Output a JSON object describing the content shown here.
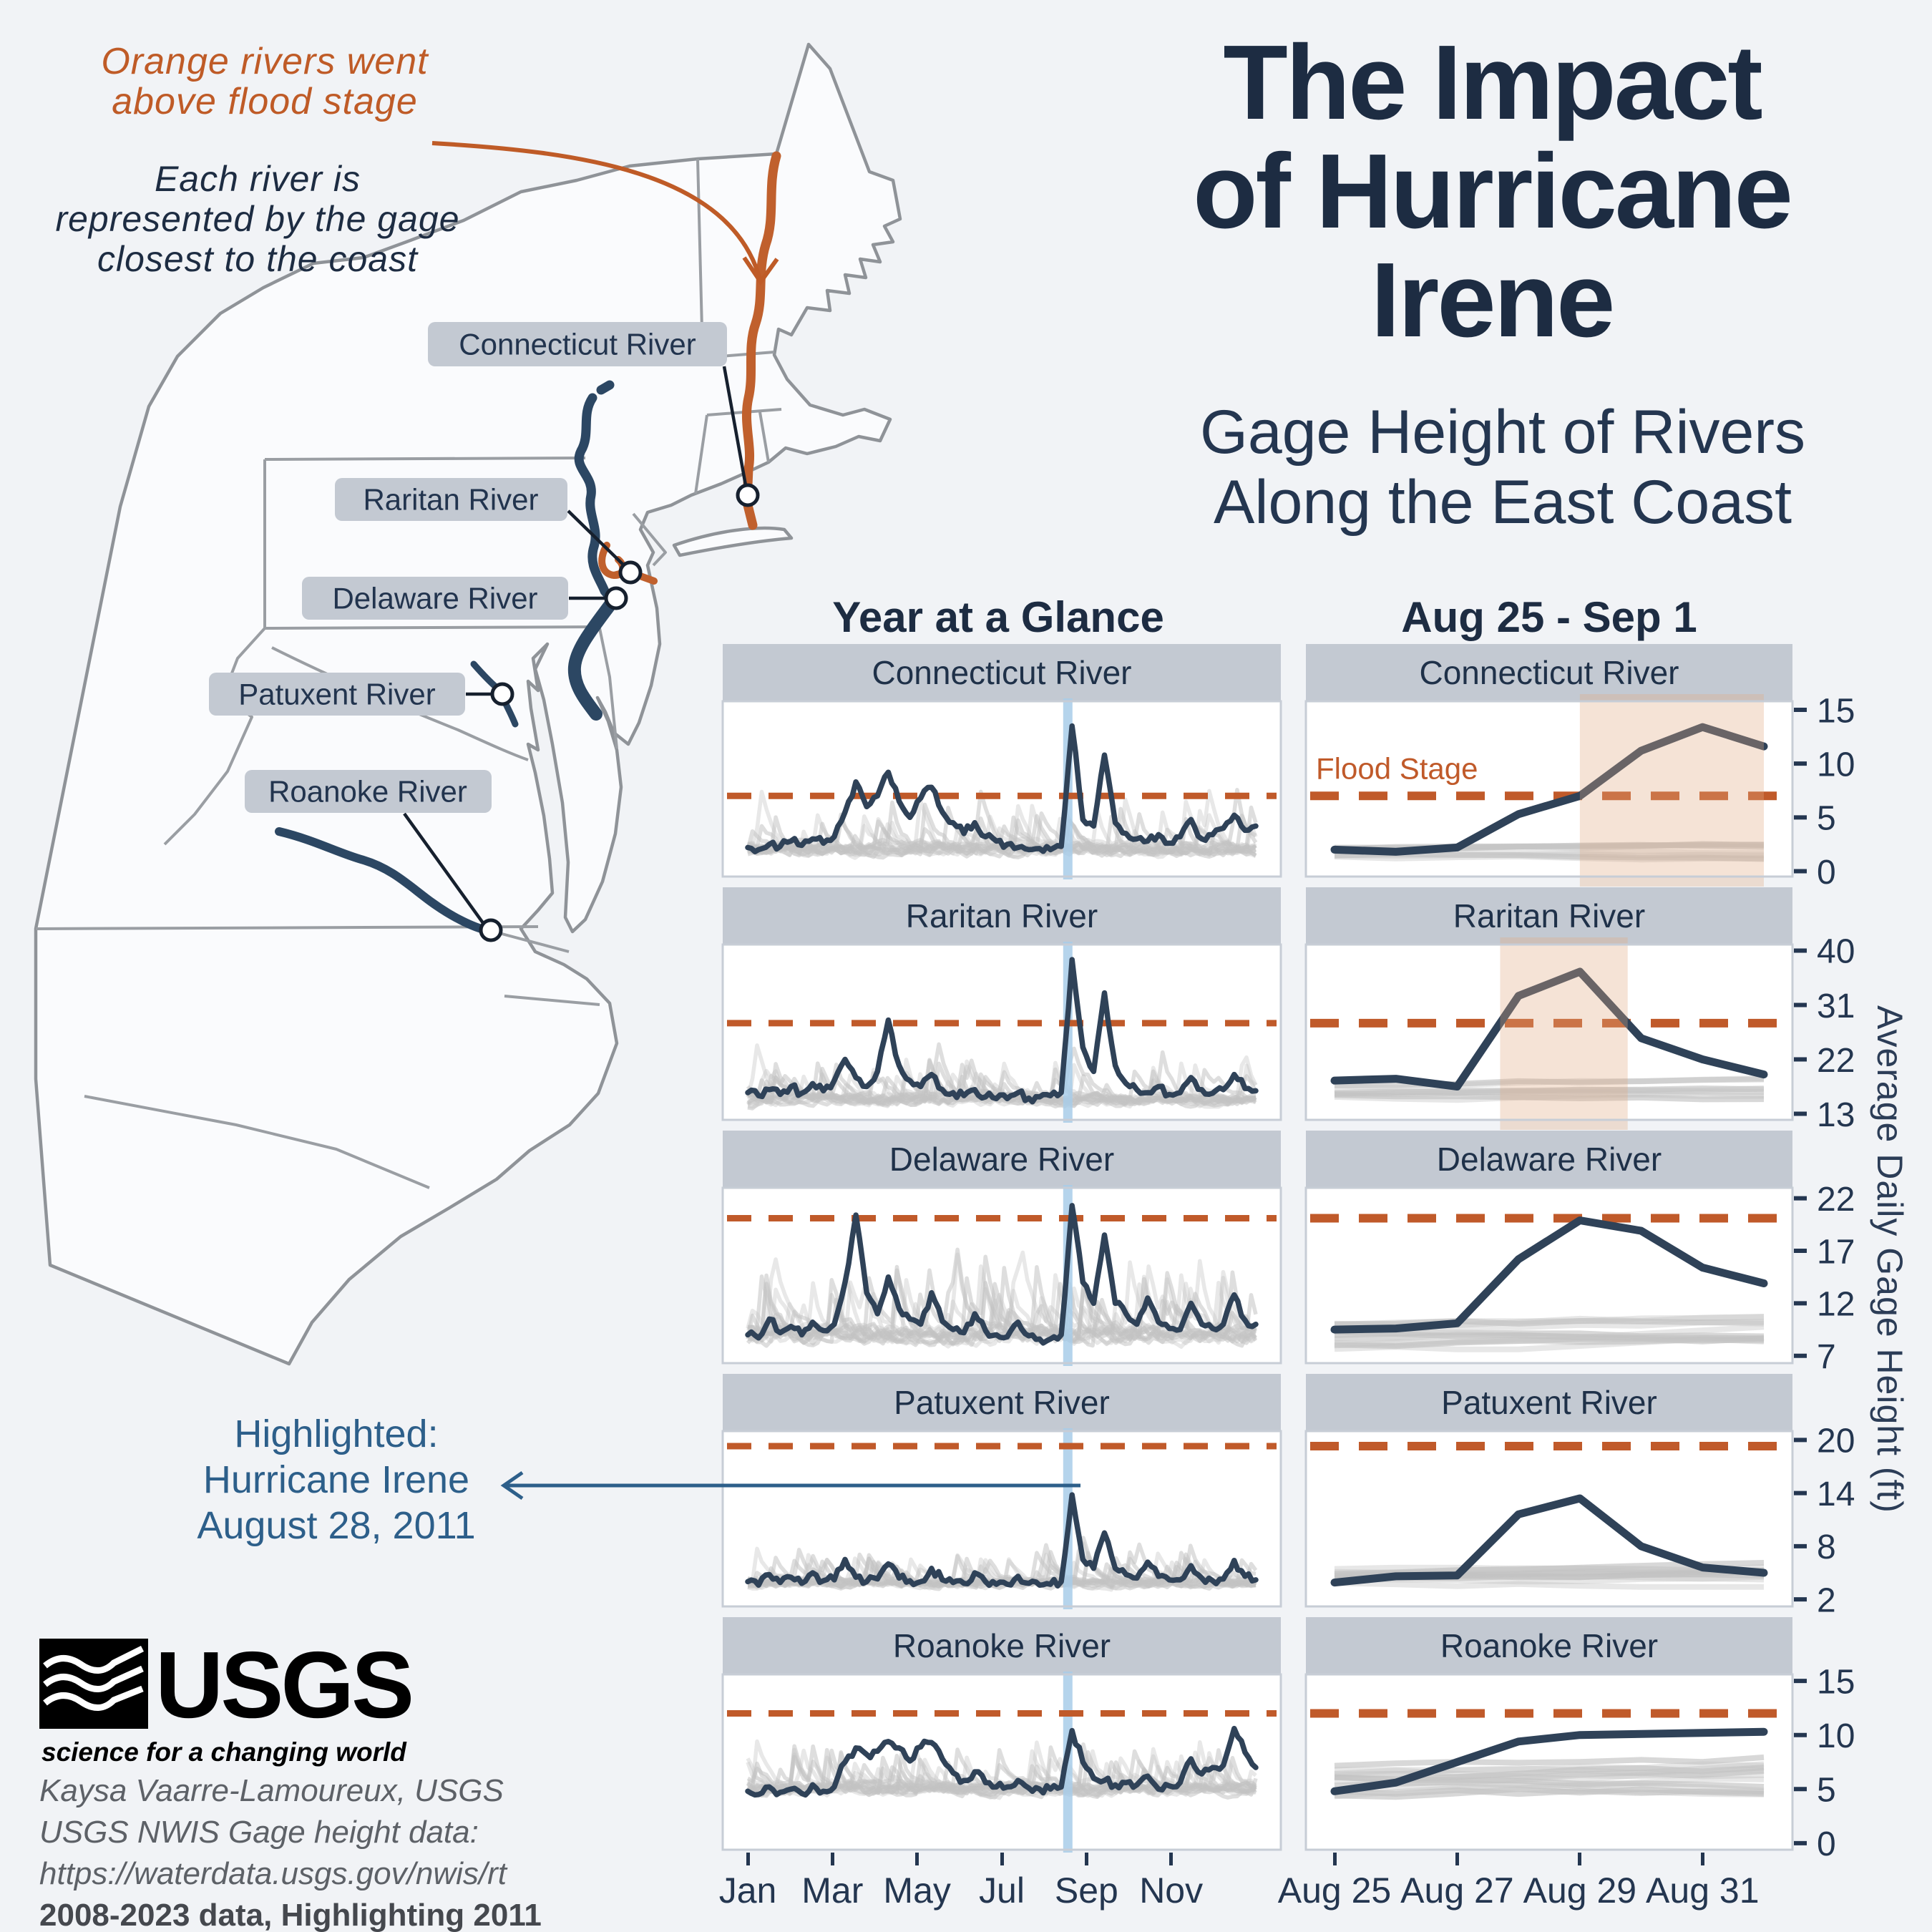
{
  "title": {
    "line1": "The Impact",
    "line2": "of Hurricane",
    "line3": "Irene"
  },
  "subtitle": {
    "line1": "Gage Height of Rivers",
    "line2": "Along the East Coast"
  },
  "column_headers": {
    "year": "Year at a Glance",
    "week": "Aug 25 - Sep 1"
  },
  "map": {
    "note_flood": [
      "Orange rivers went",
      "above flood stage"
    ],
    "note_gage": [
      "Each river is",
      "represented by the gage",
      "closest to the coast"
    ],
    "labels": [
      "Connecticut River",
      "Raritan River",
      "Delaware River",
      "Patuxent River",
      "Roanoke River"
    ]
  },
  "flood_stage_label": "Flood Stage",
  "highlight_note": {
    "line1": "Highlighted:",
    "line2": "Hurricane Irene",
    "line3": "August 28, 2011"
  },
  "axis": {
    "year_ticks": [
      "Jan",
      "Mar",
      "May",
      "Jul",
      "Sep",
      "Nov"
    ],
    "week_ticks": [
      "Aug 25",
      "Aug 27",
      "Aug 29",
      "Aug 31"
    ],
    "y_label": "Average Daily Gage Height (ft)"
  },
  "logo": {
    "org": "USGS",
    "tagline": "science for a changing world"
  },
  "credits": {
    "line1": "Kaysa Vaarre-Lamoureux, USGS",
    "line2": "USGS NWIS Gage height data:",
    "line3": "https://waterdata.usgs.gov/nwis/rt",
    "line4": "2008-2023 data, Highlighting 2011"
  },
  "colors": {
    "background": "#f1f3f6",
    "ink": "#1d2c42",
    "header_bar": "#c3c9d2",
    "panel_border": "#c7cdd6",
    "line_2011": "#2f4258",
    "line_history": "#c3c3c3",
    "flood": "#c05a2a",
    "flood_shade": "#e0a983",
    "irene_marker": "#a9cde9",
    "map_outline": "#8f9398",
    "land": "#fafbfd",
    "river_flooded": "#c0602d",
    "river": "#2c4763",
    "note_blue": "#2d5f8a",
    "credit_gray": "#5d6167"
  },
  "chart_data": [
    {
      "river": "Connecticut River",
      "type": "line",
      "flood_stage_ft": 7,
      "ylim": [
        -0.5,
        15.8
      ],
      "yticks": [
        15,
        10,
        5,
        0
      ],
      "irene_frac": 0.63,
      "year_2011_values": [
        2.2,
        2.0,
        2.5,
        2.3,
        2.8,
        2.4,
        3.0,
        2.6,
        3.2,
        5.5,
        8.3,
        6.0,
        7.0,
        9.2,
        6.5,
        5.0,
        6.8,
        7.8,
        5.5,
        4.5,
        3.5,
        4.5,
        3.2,
        2.8,
        2.5,
        2.2,
        2.0,
        2.1,
        2.0,
        2.3,
        13.5,
        4.8,
        4.2,
        10.8,
        4.5,
        3.5,
        3.0,
        2.8,
        3.4,
        2.6,
        3.2,
        4.8,
        3.0,
        3.4,
        4.0,
        5.2,
        3.8,
        4.2
      ],
      "week_days": [
        "Aug 25",
        "Aug 26",
        "Aug 27",
        "Aug 28",
        "Aug 29",
        "Aug 30",
        "Aug 31",
        "Sep 1"
      ],
      "week_2011_values": [
        2.0,
        1.8,
        2.2,
        5.3,
        7.0,
        11.2,
        13.4,
        11.6
      ],
      "week_flood_shade_days": [
        4,
        7
      ],
      "week_gray": {
        "count": 8,
        "lo": 1.0,
        "hi": 3.8
      },
      "year_gray": {
        "count": 15,
        "lo": 0.8,
        "hi": 9.0
      }
    },
    {
      "river": "Raritan River",
      "type": "line",
      "flood_stage_ft": 28,
      "ylim": [
        12,
        41
      ],
      "yticks": [
        40,
        31,
        22,
        13
      ],
      "irene_frac": 0.63,
      "year_2011_values": [
        16.5,
        16.0,
        17.0,
        16.2,
        17.5,
        16.4,
        18.0,
        16.8,
        18.5,
        22.0,
        19.0,
        17.5,
        20.0,
        28.5,
        21.0,
        18.5,
        17.5,
        19.5,
        17.0,
        16.5,
        16.0,
        17.0,
        15.8,
        15.5,
        15.5,
        16.5,
        15.6,
        15.8,
        16.0,
        16.5,
        38.5,
        24.0,
        20.0,
        33.0,
        21.0,
        18.0,
        17.0,
        16.5,
        17.5,
        16.2,
        16.5,
        19.0,
        17.0,
        16.4,
        17.0,
        19.5,
        17.2,
        16.8
      ],
      "week_days": [
        "Aug 25",
        "Aug 26",
        "Aug 27",
        "Aug 28",
        "Aug 29",
        "Aug 30",
        "Aug 31",
        "Sep 1"
      ],
      "week_2011_values": [
        18.5,
        18.8,
        17.5,
        32.5,
        36.5,
        25.5,
        22.0,
        19.5
      ],
      "week_flood_shade_days": [
        2.7,
        4.78
      ],
      "week_gray": {
        "count": 8,
        "lo": 14.5,
        "hi": 20.5
      },
      "year_gray": {
        "count": 15,
        "lo": 13.5,
        "hi": 26.0
      }
    },
    {
      "river": "Delaware River",
      "type": "line",
      "flood_stage_ft": 20.1,
      "ylim": [
        6.3,
        23
      ],
      "yticks": [
        22,
        17,
        12,
        7
      ],
      "irene_frac": 0.63,
      "year_2011_values": [
        9.0,
        8.7,
        10.5,
        9.2,
        9.8,
        9.0,
        10.2,
        9.4,
        10.0,
        14.0,
        20.4,
        13.0,
        11.0,
        14.5,
        11.5,
        10.5,
        10.0,
        13.0,
        10.3,
        9.5,
        9.2,
        11.0,
        9.4,
        9.0,
        8.8,
        10.2,
        8.9,
        8.6,
        8.6,
        9.0,
        21.3,
        14.0,
        12.0,
        18.5,
        12.0,
        11.0,
        10.0,
        12.5,
        10.2,
        9.6,
        9.5,
        12.0,
        10.0,
        9.6,
        10.0,
        12.8,
        10.4,
        10.0
      ],
      "week_days": [
        "Aug 25",
        "Aug 26",
        "Aug 27",
        "Aug 28",
        "Aug 29",
        "Aug 30",
        "Aug 31",
        "Sep 1"
      ],
      "week_2011_values": [
        9.5,
        9.6,
        10.1,
        16.2,
        19.9,
        18.9,
        15.4,
        13.9
      ],
      "week_flood_shade_days": null,
      "week_gray": {
        "count": 12,
        "lo": 7.5,
        "hi": 11.5
      },
      "year_gray": {
        "count": 15,
        "lo": 7.2,
        "hi": 19.0
      }
    },
    {
      "river": "Patuxent River",
      "type": "line",
      "flood_stage_ft": 19.3,
      "ylim": [
        1.2,
        21
      ],
      "yticks": [
        20,
        14,
        8,
        2
      ],
      "irene_frac": 0.63,
      "year_2011_values": [
        4.0,
        3.6,
        4.8,
        3.9,
        4.5,
        3.8,
        5.0,
        4.1,
        4.2,
        6.5,
        4.5,
        4.0,
        4.3,
        6.0,
        4.4,
        4.1,
        4.0,
        5.5,
        4.2,
        3.9,
        3.8,
        5.0,
        4.0,
        3.7,
        3.7,
        4.6,
        3.8,
        3.6,
        3.7,
        4.0,
        13.8,
        6.5,
        5.5,
        9.5,
        5.5,
        4.8,
        4.4,
        6.2,
        4.6,
        4.2,
        4.2,
        5.8,
        4.4,
        4.1,
        4.3,
        6.4,
        4.6,
        4.2
      ],
      "week_days": [
        "Aug 25",
        "Aug 26",
        "Aug 27",
        "Aug 28",
        "Aug 29",
        "Aug 30",
        "Aug 31",
        "Sep 1"
      ],
      "week_2011_values": [
        3.9,
        4.6,
        4.7,
        11.6,
        13.4,
        8.0,
        5.6,
        5.0
      ],
      "week_flood_shade_days": null,
      "week_gray": {
        "count": 12,
        "lo": 3.4,
        "hi": 6.5
      },
      "year_gray": {
        "count": 15,
        "lo": 2.8,
        "hi": 9.5
      }
    },
    {
      "river": "Roanoke River",
      "type": "line",
      "flood_stage_ft": 12,
      "ylim": [
        -0.6,
        15.6
      ],
      "yticks": [
        15,
        10,
        5,
        0
      ],
      "irene_frac": 0.63,
      "year_2011_values": [
        4.8,
        4.5,
        5.2,
        4.7,
        5.0,
        4.6,
        5.4,
        4.8,
        5.2,
        7.5,
        8.8,
        8.2,
        8.5,
        9.4,
        8.8,
        7.6,
        8.9,
        9.3,
        7.8,
        6.5,
        5.8,
        6.6,
        5.6,
        5.2,
        5.2,
        5.8,
        5.1,
        5.0,
        5.0,
        5.2,
        10.4,
        7.5,
        6.0,
        5.8,
        5.4,
        5.6,
        5.4,
        6.2,
        5.0,
        5.3,
        5.6,
        7.8,
        6.4,
        7.0,
        7.2,
        10.6,
        8.4,
        7.0
      ],
      "week_days": [
        "Aug 25",
        "Aug 26",
        "Aug 27",
        "Aug 28",
        "Aug 29",
        "Aug 30",
        "Aug 31",
        "Sep 1"
      ],
      "week_2011_values": [
        4.8,
        5.6,
        7.5,
        9.4,
        10.0,
        10.1,
        10.2,
        10.3
      ],
      "week_flood_shade_days": null,
      "week_gray": {
        "count": 14,
        "lo": 4.0,
        "hi": 9.0
      },
      "year_gray": {
        "count": 16,
        "lo": 3.8,
        "hi": 11.7
      }
    }
  ]
}
